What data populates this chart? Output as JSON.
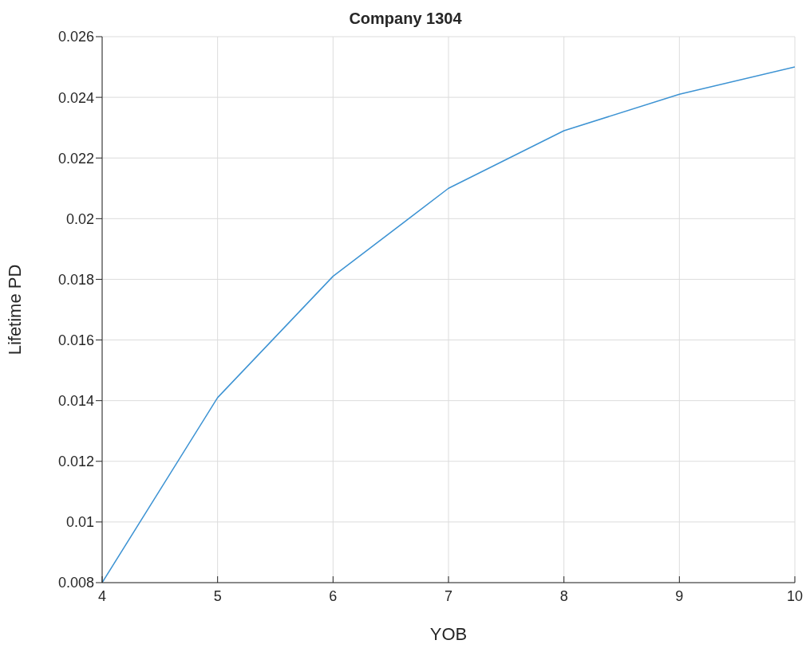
{
  "chart_data": {
    "type": "line",
    "title": "Company 1304",
    "xlabel": "YOB",
    "ylabel": "Lifetime PD",
    "x": [
      4,
      5,
      6,
      7,
      8,
      9,
      10
    ],
    "series": [
      {
        "color": "#3d93d3",
        "values": [
          0.008,
          0.0141,
          0.0181,
          0.021,
          0.0229,
          0.0241,
          0.025
        ]
      }
    ],
    "xlim": [
      4,
      10
    ],
    "xticks": [
      4,
      5,
      6,
      7,
      8,
      9,
      10
    ],
    "ylim": [
      0.008,
      0.026
    ],
    "yticks": [
      0.008,
      0.01,
      0.012,
      0.014,
      0.016,
      0.018,
      0.02,
      0.022,
      0.024,
      0.026
    ],
    "grid": true,
    "legend": false,
    "marker": "none",
    "line_style": "solid"
  }
}
